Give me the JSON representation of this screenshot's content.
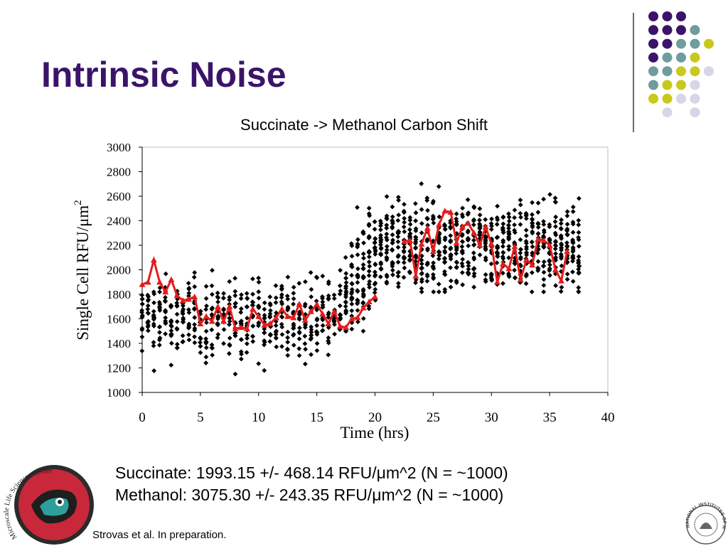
{
  "slide": {
    "title": "Intrinsic Noise",
    "stats_line1": "Succinate:  1993.15 +/- 468.14 RFU/μm^2 (N = ~1000)",
    "stats_line2": "Methanol:  3075.30 +/- 243.35 RFU/μm^2 (N = ~1000)",
    "citation": "Strovas et al. In preparation.",
    "logo_left_text": "Microscale Life Sciences Center",
    "logo_right_text": "NATIONAL INSTITUTES OF HEALTH"
  },
  "decor": {
    "dot_colors": {
      "purple": "#3b1469",
      "teal": "#6f9c9c",
      "yellow": "#c9c81c",
      "lavender": "#d6d6e8"
    },
    "title_color": "#3b1469"
  },
  "chart_data": {
    "type": "scatter",
    "title": "Succinate -> Methanol Carbon Shift",
    "xlabel": "Time (hrs)",
    "ylabel": "Single Cell RFU/μm",
    "ylabel_superscript": "2",
    "xlim": [
      0,
      40
    ],
    "ylim": [
      1000,
      3000
    ],
    "x_ticks": [
      "0",
      "5",
      "10",
      "15",
      "20",
      "25",
      "30",
      "35",
      "40"
    ],
    "y_ticks": [
      "1000",
      "1200",
      "1400",
      "1600",
      "1800",
      "2000",
      "2200",
      "2400",
      "2600",
      "2800",
      "3000"
    ],
    "grid": false,
    "series": [
      {
        "kind": "scatter",
        "color": "#000000",
        "description": "single-cell measurements",
        "phases": [
          {
            "x_range": [
              0,
              17.5
            ],
            "mean": 1600,
            "spread": 160,
            "min": 1150,
            "max": 2080,
            "points_per_time": 14
          },
          {
            "x_range": [
              17.5,
              20.5
            ],
            "mean_start": 1700,
            "mean_end": 2250,
            "spread": 230,
            "min": 1500,
            "max": 2800,
            "points_per_time": 22
          },
          {
            "x_range": [
              20.5,
              38
            ],
            "mean": 2200,
            "spread": 170,
            "min": 1820,
            "max": 2880,
            "points_per_time": 20
          }
        ]
      },
      {
        "kind": "line",
        "color": "#e51c1c",
        "marker": "triangle",
        "description": "mean trace",
        "points": [
          [
            0,
            1880
          ],
          [
            0.5,
            1900
          ],
          [
            1,
            2080
          ],
          [
            1.5,
            1900
          ],
          [
            2,
            1820
          ],
          [
            2.5,
            1920
          ],
          [
            3,
            1790
          ],
          [
            3.5,
            1750
          ],
          [
            4,
            1760
          ],
          [
            4.5,
            1780
          ],
          [
            5,
            1560
          ],
          [
            5.5,
            1620
          ],
          [
            6,
            1580
          ],
          [
            6.5,
            1700
          ],
          [
            7,
            1580
          ],
          [
            7.5,
            1700
          ],
          [
            8,
            1520
          ],
          [
            8.5,
            1530
          ],
          [
            9,
            1520
          ],
          [
            9.5,
            1680
          ],
          [
            10,
            1620
          ],
          [
            10.5,
            1550
          ],
          [
            11,
            1560
          ],
          [
            11.5,
            1610
          ],
          [
            12,
            1680
          ],
          [
            12.5,
            1620
          ],
          [
            13,
            1610
          ],
          [
            13.5,
            1720
          ],
          [
            14,
            1590
          ],
          [
            14.5,
            1660
          ],
          [
            15,
            1720
          ],
          [
            15.5,
            1640
          ],
          [
            16,
            1560
          ],
          [
            16.5,
            1660
          ],
          [
            17,
            1540
          ],
          [
            17.5,
            1530
          ],
          [
            18,
            1600
          ],
          [
            18.5,
            1610
          ],
          [
            19,
            1690
          ],
          [
            19.5,
            1740
          ],
          [
            20,
            1780
          ],
          [
            22.5,
            2230
          ],
          [
            23,
            2240
          ],
          [
            23.5,
            1950
          ],
          [
            24,
            2210
          ],
          [
            24.5,
            2340
          ],
          [
            25,
            2150
          ],
          [
            25.5,
            2370
          ],
          [
            26,
            2480
          ],
          [
            26.5,
            2470
          ],
          [
            27,
            2220
          ],
          [
            27.5,
            2350
          ],
          [
            28,
            2380
          ],
          [
            28.5,
            2300
          ],
          [
            29,
            2200
          ],
          [
            29.5,
            2350
          ],
          [
            30,
            2210
          ],
          [
            30.5,
            1900
          ],
          [
            31,
            2050
          ],
          [
            31.5,
            2010
          ],
          [
            32,
            2190
          ],
          [
            32.5,
            1920
          ],
          [
            33,
            2080
          ],
          [
            33.5,
            2040
          ],
          [
            34,
            2250
          ],
          [
            34.5,
            2240
          ],
          [
            35,
            2200
          ],
          [
            35.5,
            2000
          ],
          [
            36,
            1910
          ],
          [
            36.5,
            2150
          ]
        ]
      }
    ]
  }
}
